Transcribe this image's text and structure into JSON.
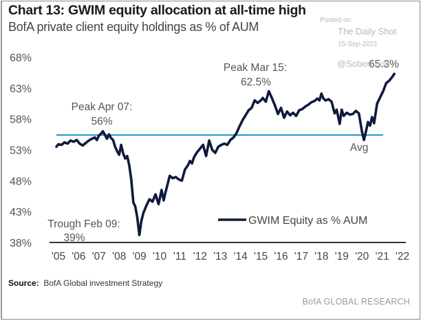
{
  "header": {
    "title": "Chart 13: GWIM equity allocation at all-time high",
    "subtitle": "BofA private client equity holdings as % of AUM"
  },
  "watermark": {
    "line1": "Posted on",
    "line2": "The Daily Shot",
    "line3": "15-Sep-2021",
    "line4": "@SoberLook"
  },
  "footer": {
    "source_label": "Source:",
    "source_text": "BofA Global investment Strategy",
    "brand": "BofA GLOBAL RESEARCH"
  },
  "colors": {
    "series": "#0f1a3c",
    "average_line": "#2e9bd0",
    "axis": "#333333"
  },
  "chart_data": {
    "type": "line",
    "title": "Chart 13: GWIM equity allocation at all-time high",
    "subtitle": "BofA private client equity holdings as % of AUM",
    "xlabel": "",
    "ylabel": "",
    "ylim": [
      38,
      68
    ],
    "xlim": [
      2005,
      2022
    ],
    "yticks": [
      38,
      43,
      48,
      53,
      58,
      63,
      68
    ],
    "ytick_labels": [
      "38%",
      "43%",
      "48%",
      "53%",
      "58%",
      "63%",
      "68%"
    ],
    "xticks": [
      2005,
      2006,
      2007,
      2008,
      2009,
      2010,
      2011,
      2012,
      2013,
      2014,
      2015,
      2016,
      2017,
      2018,
      2019,
      2020,
      2021,
      2022
    ],
    "xtick_labels": [
      "'05",
      "'06",
      "'07",
      "'08",
      "'09",
      "'10",
      "'11",
      "'12",
      "'13",
      "'14",
      "'15",
      "'16",
      "'17",
      "'18",
      "'19",
      "'20",
      "'21",
      "'22"
    ],
    "grid": false,
    "legend": {
      "position": "bottom-right",
      "entries": [
        "GWIM Equity as % AUM"
      ]
    },
    "average": {
      "label": "Avg",
      "value": 55.4
    },
    "annotations": [
      {
        "label": "Peak Apr 07:",
        "value_label": "56%",
        "x": 2007.3,
        "y": 56
      },
      {
        "label": "Trough Feb 09:",
        "value_label": "39%",
        "x": 2009.1,
        "y": 39
      },
      {
        "label": "Peak Mar 15:",
        "value_label": "62.5%",
        "x": 2015.2,
        "y": 62.5
      },
      {
        "label": "",
        "value_label": "65.3%",
        "x": 2021.7,
        "y": 65.3
      }
    ],
    "series": [
      {
        "name": "GWIM Equity as % AUM",
        "x": [
          2005.0,
          2005.1,
          2005.25,
          2005.4,
          2005.55,
          2005.7,
          2005.85,
          2006.0,
          2006.15,
          2006.3,
          2006.45,
          2006.6,
          2006.75,
          2006.9,
          2007.0,
          2007.1,
          2007.2,
          2007.3,
          2007.4,
          2007.5,
          2007.6,
          2007.7,
          2007.8,
          2007.9,
          2008.0,
          2008.1,
          2008.2,
          2008.3,
          2008.4,
          2008.5,
          2008.6,
          2008.7,
          2008.8,
          2008.9,
          2009.0,
          2009.1,
          2009.2,
          2009.3,
          2009.45,
          2009.6,
          2009.75,
          2009.9,
          2010.05,
          2010.2,
          2010.3,
          2010.4,
          2010.5,
          2010.6,
          2010.75,
          2010.9,
          2011.05,
          2011.2,
          2011.35,
          2011.5,
          2011.6,
          2011.7,
          2011.8,
          2011.95,
          2012.1,
          2012.25,
          2012.4,
          2012.55,
          2012.7,
          2012.85,
          2013.0,
          2013.15,
          2013.3,
          2013.45,
          2013.6,
          2013.75,
          2013.9,
          2014.05,
          2014.2,
          2014.35,
          2014.5,
          2014.65,
          2014.8,
          2014.95,
          2015.1,
          2015.2,
          2015.35,
          2015.5,
          2015.65,
          2015.8,
          2015.95,
          2016.1,
          2016.25,
          2016.4,
          2016.55,
          2016.7,
          2016.85,
          2017.0,
          2017.15,
          2017.3,
          2017.45,
          2017.6,
          2017.75,
          2017.9,
          2018.0,
          2018.1,
          2018.2,
          2018.3,
          2018.45,
          2018.6,
          2018.75,
          2018.85,
          2019.0,
          2019.1,
          2019.2,
          2019.35,
          2019.5,
          2019.65,
          2019.8,
          2019.95,
          2020.1,
          2020.2,
          2020.3,
          2020.4,
          2020.5,
          2020.6,
          2020.7,
          2020.85,
          2021.0,
          2021.15,
          2021.3,
          2021.45,
          2021.6,
          2021.7
        ],
        "values": [
          53.5,
          53.9,
          53.8,
          54.2,
          54.0,
          54.5,
          54.3,
          54.6,
          54.0,
          53.7,
          54.1,
          54.5,
          54.8,
          55.0,
          54.6,
          55.3,
          55.6,
          56.0,
          55.4,
          54.8,
          55.5,
          54.9,
          54.6,
          53.5,
          52.8,
          52.2,
          53.8,
          52.4,
          51.6,
          52.0,
          50.5,
          48.2,
          44.5,
          43.8,
          42.0,
          39.2,
          41.5,
          42.8,
          44.0,
          45.0,
          44.6,
          45.8,
          44.2,
          46.5,
          44.8,
          46.2,
          47.5,
          48.8,
          48.4,
          48.6,
          48.2,
          48.0,
          49.8,
          50.5,
          51.2,
          50.8,
          51.8,
          52.6,
          53.2,
          53.8,
          52.0,
          54.5,
          53.0,
          52.5,
          53.5,
          53.8,
          54.0,
          53.8,
          54.6,
          55.0,
          55.7,
          56.8,
          57.8,
          58.6,
          59.4,
          59.8,
          61.0,
          60.6,
          61.0,
          61.4,
          60.8,
          62.5,
          61.4,
          60.2,
          58.8,
          59.8,
          58.2,
          59.2,
          58.6,
          59.0,
          58.5,
          59.4,
          59.6,
          60.0,
          60.3,
          60.7,
          60.9,
          61.3,
          61.0,
          62.1,
          61.3,
          61.0,
          61.2,
          60.8,
          58.9,
          59.5,
          57.2,
          59.5,
          58.5,
          59.0,
          58.7,
          58.8,
          59.3,
          58.9,
          56.0,
          54.6,
          56.0,
          57.5,
          56.9,
          58.3,
          57.3,
          60.5,
          61.5,
          62.5,
          63.8,
          64.2,
          64.8,
          65.3
        ]
      }
    ]
  }
}
